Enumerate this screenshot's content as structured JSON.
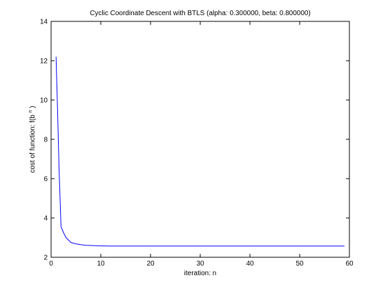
{
  "chart_data": {
    "type": "line",
    "title": "Cyclic Coordinate Descent with BTLS (alpha: 0.300000, beta: 0.800000)",
    "xlabel": "iteration: n",
    "ylabel": "cost of function: f(b",
    "ylabel_superscript": "n",
    "ylabel_suffix": ")",
    "xlim": [
      0,
      60
    ],
    "ylim": [
      2,
      14
    ],
    "xticks": [
      0,
      10,
      20,
      30,
      40,
      50,
      60
    ],
    "yticks": [
      2,
      4,
      6,
      8,
      10,
      12,
      14
    ],
    "grid": false,
    "series": [
      {
        "color": "#0000ff",
        "x": [
          1,
          1.3,
          1.6,
          2,
          2.5,
          3,
          4,
          5,
          6,
          7,
          8,
          9,
          10,
          12,
          15,
          20,
          30,
          40,
          50,
          59
        ],
        "y": [
          12.2,
          9.5,
          6.5,
          3.55,
          3.25,
          3.0,
          2.75,
          2.68,
          2.64,
          2.61,
          2.6,
          2.59,
          2.58,
          2.57,
          2.57,
          2.57,
          2.57,
          2.57,
          2.57,
          2.57
        ]
      }
    ]
  }
}
